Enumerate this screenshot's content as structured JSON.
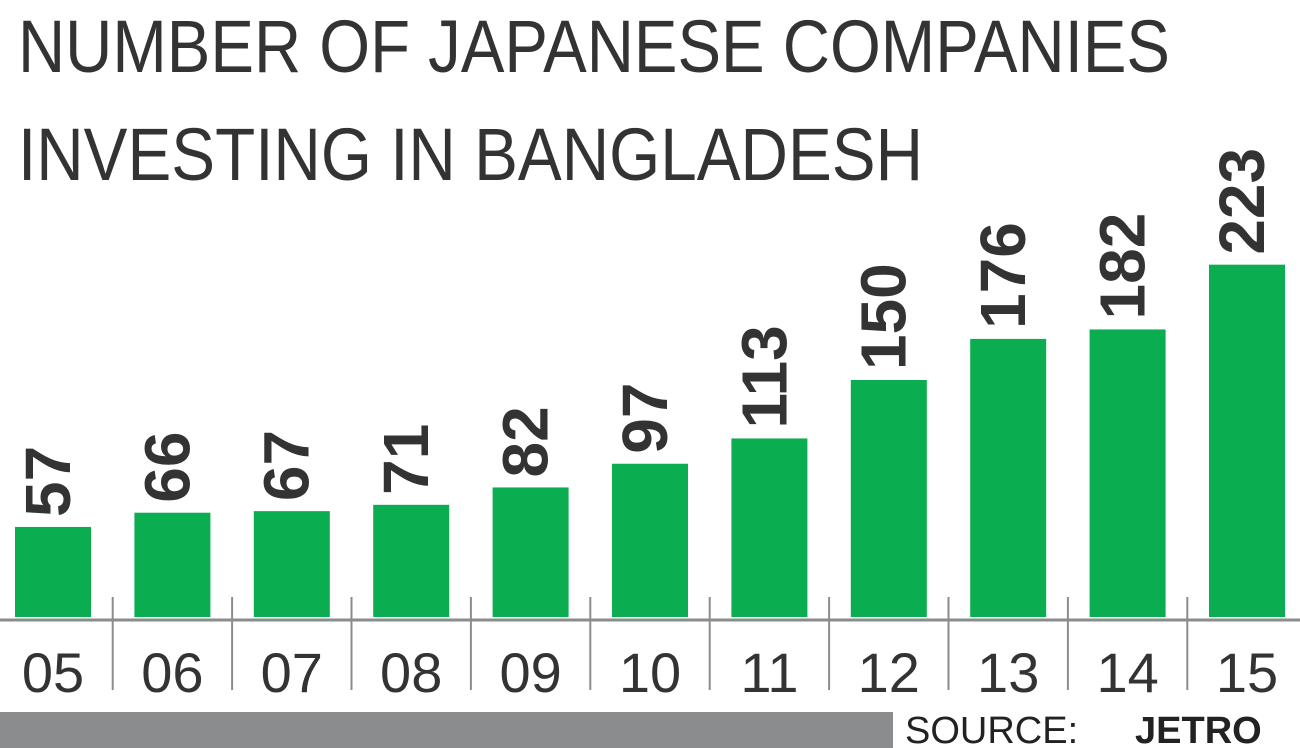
{
  "chart_data": {
    "type": "bar",
    "title": [
      "NUMBER OF JAPANESE COMPANIES",
      "INVESTING IN BANGLADESH"
    ],
    "categories": [
      "05",
      "06",
      "07",
      "08",
      "09",
      "10",
      "11",
      "12",
      "13",
      "14",
      "15"
    ],
    "values": [
      57,
      66,
      67,
      71,
      82,
      97,
      113,
      150,
      176,
      182,
      223
    ],
    "color": "#0aae50",
    "source_label": "SOURCE:",
    "source": "JETRO"
  }
}
